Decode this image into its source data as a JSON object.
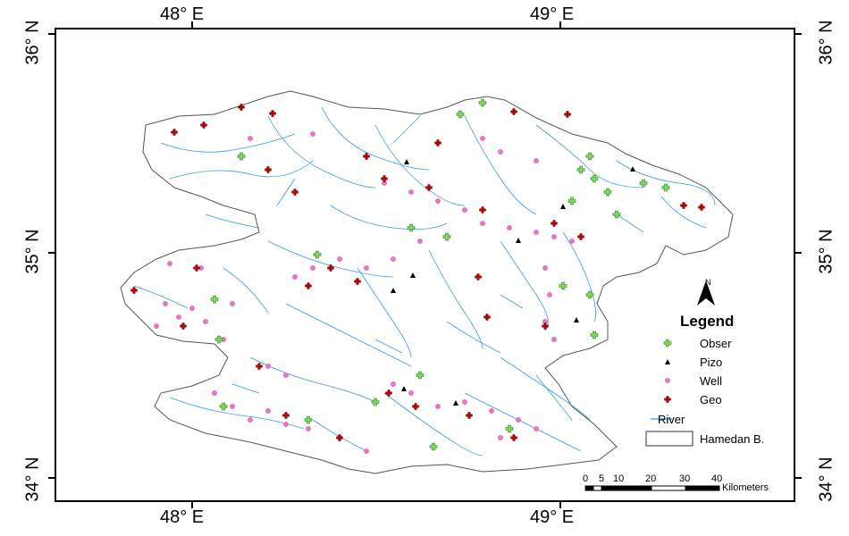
{
  "map": {
    "top_ticks": [
      "48° E",
      "49° E"
    ],
    "bottom_ticks": [
      "48° E",
      "49° E"
    ],
    "left_ticks": [
      "36° N",
      "35° N",
      "34° N"
    ],
    "right_ticks": [
      "36° N",
      "35° N",
      "34° N"
    ]
  },
  "legend": {
    "title": "Legend",
    "north": "N",
    "items": [
      {
        "label": "Obser",
        "symbol": "green-cross",
        "color": "#7ED957"
      },
      {
        "label": "Pizo",
        "symbol": "black-triangle",
        "color": "#000000"
      },
      {
        "label": "Well",
        "symbol": "pink-dot",
        "color": "#E377C2"
      },
      {
        "label": "Geo",
        "symbol": "red-cross",
        "color": "#C00000"
      },
      {
        "label": "River",
        "symbol": "blue-line",
        "color": "#3A9AD9"
      },
      {
        "label": "Hamedan B.",
        "symbol": "white-rectangle",
        "color": "#FFFFFF"
      }
    ]
  },
  "scalebar": {
    "ticks": [
      "0",
      "5",
      "10",
      "20",
      "30",
      "40"
    ],
    "unit": "Kilometers"
  },
  "colors": {
    "river": "#3A9AD9",
    "boundary": "#555555",
    "obser": "#7ED957",
    "obser_stroke": "#2E7D32",
    "well": "#E377C2",
    "geo": "#C00000"
  }
}
